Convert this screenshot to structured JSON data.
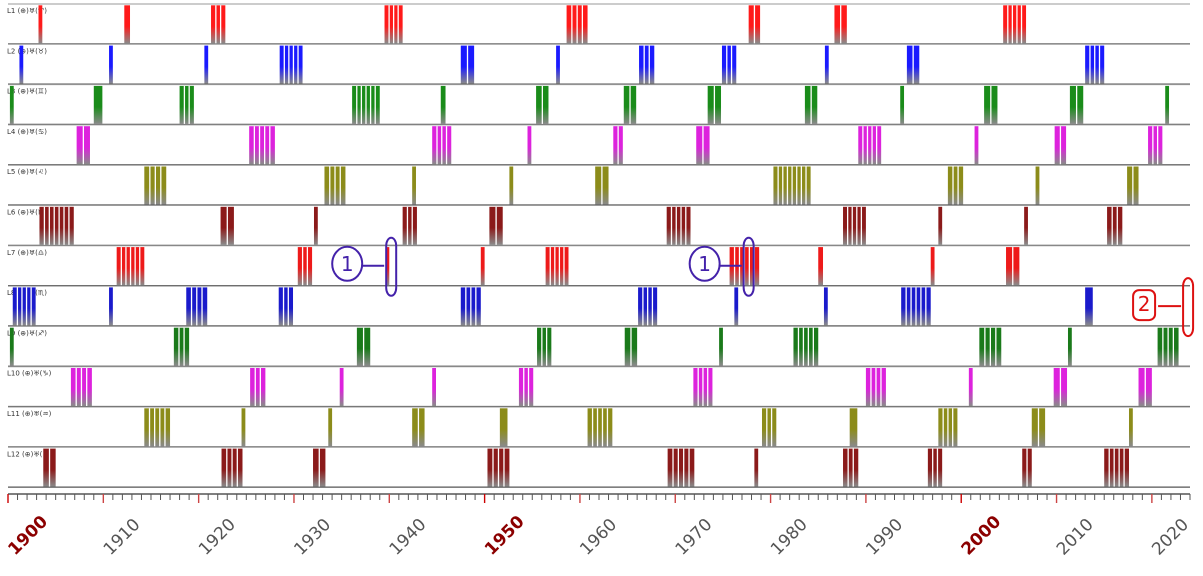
{
  "chart_data": {
    "type": "timeline",
    "x_range": [
      1900,
      2024
    ],
    "x_tick_labels": [
      "1900",
      "1910",
      "1920",
      "1930",
      "1940",
      "1950",
      "1960",
      "1970",
      "1980",
      "1990",
      "2000",
      "2010",
      "2020"
    ],
    "major_ticks": [
      "1900",
      "1950",
      "2000"
    ],
    "rows": [
      {
        "label": "L1 (⊕)♅(♈)",
        "color": "#ff1a1a",
        "bars": [
          [
            1903.2,
            1903.6
          ],
          [
            1912.2,
            1912.8
          ],
          [
            1921.3,
            1922.8
          ],
          [
            1939.5,
            1941.4
          ],
          [
            1958.6,
            1960.8
          ],
          [
            1977.7,
            1978.9
          ],
          [
            1986.7,
            1988.0
          ],
          [
            2004.4,
            2006.8
          ]
        ]
      },
      {
        "label": "L2 (⊕)♅(♉)",
        "color": "#1a1aff",
        "bars": [
          [
            1901.2,
            1901.6
          ],
          [
            1910.6,
            1911.0
          ],
          [
            1920.6,
            1921.0
          ],
          [
            1928.5,
            1930.9
          ],
          [
            1947.5,
            1948.9
          ],
          [
            1957.5,
            1957.9
          ],
          [
            1966.2,
            1967.8
          ],
          [
            1974.9,
            1976.4
          ],
          [
            1985.7,
            1986.1
          ],
          [
            1994.3,
            1995.6
          ],
          [
            2013.0,
            2015.0
          ]
        ]
      },
      {
        "label": "L3 (⊕)♅(♊)",
        "color": "#1a8c1a",
        "bars": [
          [
            1900.2,
            1900.6
          ],
          [
            1909.0,
            1909.9
          ],
          [
            1918.0,
            1919.5
          ],
          [
            1936.1,
            1939.0
          ],
          [
            1945.4,
            1945.9
          ],
          [
            1955.4,
            1956.7
          ],
          [
            1964.6,
            1965.9
          ],
          [
            1973.4,
            1974.8
          ],
          [
            1983.6,
            1984.9
          ],
          [
            1993.6,
            1994.0
          ],
          [
            2002.4,
            2003.8
          ],
          [
            2011.4,
            2012.8
          ],
          [
            2021.4,
            2021.8
          ]
        ]
      },
      {
        "label": "L4 (⊕)♅(♋)",
        "color": "#dd22dd",
        "bars": [
          [
            1907.2,
            1908.6
          ],
          [
            1925.3,
            1928.0
          ],
          [
            1944.5,
            1946.5
          ],
          [
            1954.5,
            1954.9
          ],
          [
            1963.5,
            1964.5
          ],
          [
            1972.2,
            1973.6
          ],
          [
            1989.2,
            1991.6
          ],
          [
            2001.4,
            2001.8
          ],
          [
            2009.8,
            2011.0
          ],
          [
            2019.6,
            2021.1
          ]
        ]
      },
      {
        "label": "L5 (⊕)♅(♌)",
        "color": "#8c8c1a",
        "bars": [
          [
            1914.3,
            1916.6
          ],
          [
            1933.2,
            1935.4
          ],
          [
            1942.4,
            1942.8
          ],
          [
            1952.6,
            1953.0
          ],
          [
            1961.6,
            1963.0
          ],
          [
            1980.3,
            1984.2
          ],
          [
            1998.6,
            2000.2
          ],
          [
            2007.8,
            2008.2
          ],
          [
            2017.4,
            2018.6
          ]
        ]
      },
      {
        "label": "L6 (⊕)♅(♍)",
        "color": "#8b1a1a",
        "bars": [
          [
            1903.3,
            1906.9
          ],
          [
            1922.3,
            1923.7
          ],
          [
            1932.1,
            1932.5
          ],
          [
            1941.4,
            1942.9
          ],
          [
            1950.5,
            1951.9
          ],
          [
            1969.1,
            1971.6
          ],
          [
            1987.6,
            1990.0
          ],
          [
            1997.6,
            1998.0
          ],
          [
            2006.6,
            2007.0
          ],
          [
            2015.3,
            2016.9
          ]
        ]
      },
      {
        "label": "L7 (⊕)♅(♎)",
        "color": "#ee1a1a",
        "bars": [
          [
            1911.4,
            1914.3
          ],
          [
            1930.4,
            1931.9
          ],
          [
            1939.6,
            1940.0
          ],
          [
            1949.6,
            1950.0
          ],
          [
            1956.4,
            1958.8
          ],
          [
            1975.7,
            1978.8
          ],
          [
            1985.0,
            1985.5
          ],
          [
            1996.8,
            1997.2
          ],
          [
            2004.7,
            2006.1
          ]
        ]
      },
      {
        "label": "L8 (⊕)♅(♏)",
        "color": "#1a1acc",
        "bars": [
          [
            1900.5,
            1902.9
          ],
          [
            1910.6,
            1911.0
          ],
          [
            1918.7,
            1920.9
          ],
          [
            1928.4,
            1929.9
          ],
          [
            1947.5,
            1949.6
          ],
          [
            1966.1,
            1968.1
          ],
          [
            1976.2,
            1976.6
          ],
          [
            1985.6,
            1986.0
          ],
          [
            1993.7,
            1996.8
          ],
          [
            2013.0,
            2013.8
          ]
        ]
      },
      {
        "label": "L9 (⊕)♅(♐)",
        "color": "#1a7a1a",
        "bars": [
          [
            1900.2,
            1900.6
          ],
          [
            1917.4,
            1919.0
          ],
          [
            1936.6,
            1938.0
          ],
          [
            1955.5,
            1957.0
          ],
          [
            1964.7,
            1966.0
          ],
          [
            1974.6,
            1975.0
          ],
          [
            1982.4,
            1985.0
          ],
          [
            2001.9,
            2004.2
          ],
          [
            2011.2,
            2011.6
          ],
          [
            2020.6,
            2022.8
          ]
        ]
      },
      {
        "label": "L10 (⊕)♅(♑)",
        "color": "#dd22dd",
        "bars": [
          [
            1906.6,
            1908.8
          ],
          [
            1925.4,
            1927.0
          ],
          [
            1934.8,
            1935.2
          ],
          [
            1944.5,
            1944.9
          ],
          [
            1953.6,
            1955.1
          ],
          [
            1971.9,
            1973.9
          ],
          [
            1990.0,
            1992.1
          ],
          [
            2000.8,
            2001.2
          ],
          [
            2009.7,
            2011.1
          ],
          [
            2018.6,
            2020.0
          ]
        ]
      },
      {
        "label": "L11 (⊕)♅(♒)",
        "color": "#8c8c1a",
        "bars": [
          [
            1914.3,
            1917.0
          ],
          [
            1924.5,
            1924.9
          ],
          [
            1933.6,
            1934.0
          ],
          [
            1942.4,
            1943.7
          ],
          [
            1951.6,
            1952.4
          ],
          [
            1960.8,
            1963.4
          ],
          [
            1979.1,
            1980.6
          ],
          [
            1988.3,
            1989.1
          ],
          [
            1997.6,
            1999.6
          ],
          [
            2007.4,
            2008.8
          ],
          [
            2017.6,
            2018.0
          ]
        ]
      },
      {
        "label": "L12 (⊕)♅(♓)",
        "color": "#8b1a1a",
        "bars": [
          [
            1903.7,
            1905.0
          ],
          [
            1922.4,
            1924.6
          ],
          [
            1932.0,
            1933.3
          ],
          [
            1950.3,
            1952.6
          ],
          [
            1969.2,
            1972.0
          ],
          [
            1978.3,
            1978.7
          ],
          [
            1987.6,
            1989.2
          ],
          [
            1996.5,
            1998.0
          ],
          [
            2006.4,
            2007.4
          ],
          [
            2015.0,
            2017.6
          ]
        ]
      }
    ],
    "annotations": [
      {
        "text": "1",
        "color": "#4422aa",
        "target_year": 1940.2,
        "row_index": 6
      },
      {
        "text": "1",
        "color": "#4422aa",
        "target_year": 1977.7,
        "row_index": 6
      },
      {
        "text": "2",
        "color": "#dd1111",
        "target_year": 2023.8,
        "row_index": 7
      }
    ]
  }
}
